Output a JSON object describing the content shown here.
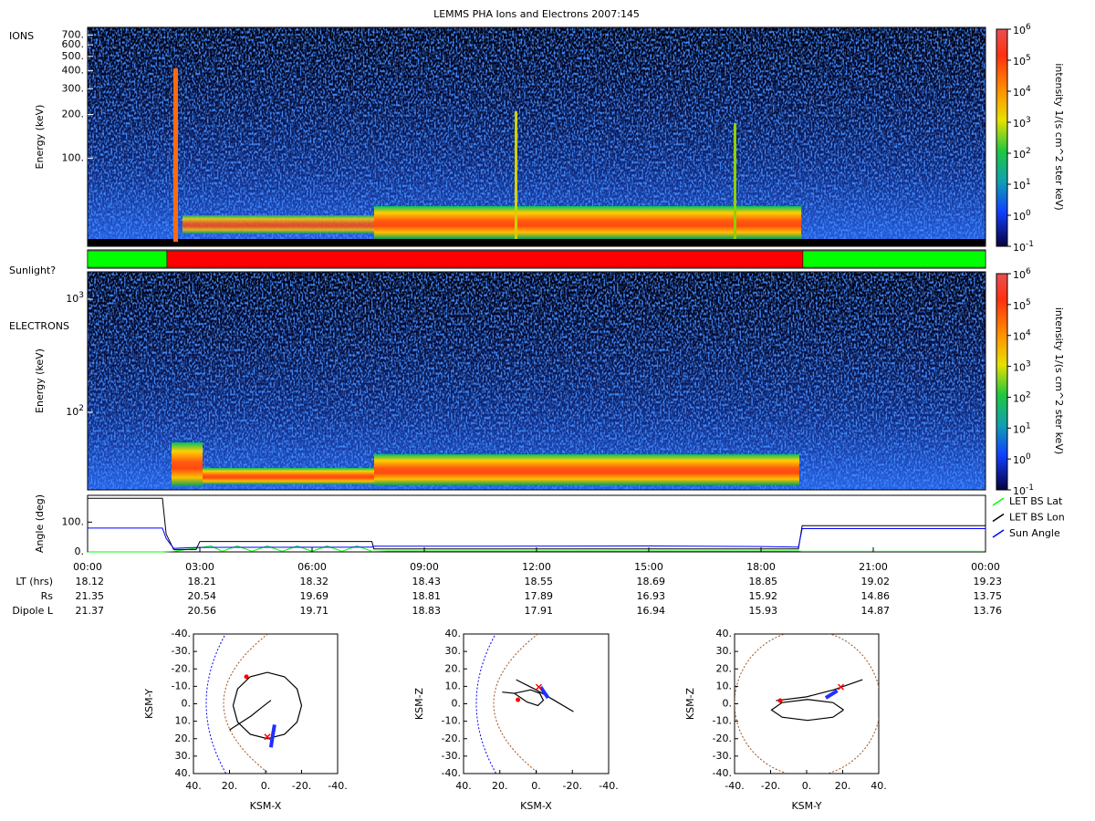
{
  "title": "LEMMS PHA Ions and Electrons  2007:145",
  "time_axis": {
    "xlim": [
      0,
      24
    ],
    "xticks": [
      {
        "value": 0,
        "label": "00:00"
      },
      {
        "value": 3,
        "label": "03:00"
      },
      {
        "value": 6,
        "label": "06:00"
      },
      {
        "value": 9,
        "label": "09:00"
      },
      {
        "value": 12,
        "label": "12:00"
      },
      {
        "value": 15,
        "label": "15:00"
      },
      {
        "value": 18,
        "label": "18:00"
      },
      {
        "value": 21,
        "label": "21:00"
      },
      {
        "value": 24,
        "label": "00:00"
      }
    ]
  },
  "ions": {
    "label": "IONS",
    "ylabel": "Energy (keV)",
    "log": true,
    "ylim": [
      25,
      790
    ],
    "yticks": [
      {
        "value": 100,
        "label": "100."
      },
      {
        "value": 200,
        "label": "200."
      },
      {
        "value": 300,
        "label": "300."
      },
      {
        "value": 400,
        "label": "400."
      },
      {
        "value": 500,
        "label": "500."
      },
      {
        "value": 600,
        "label": "600."
      },
      {
        "value": 700,
        "label": "700."
      }
    ]
  },
  "electrons": {
    "label": "ELECTRONS",
    "ylabel": "Energy (keV)",
    "log": true,
    "ylim": [
      20.6,
      1745
    ],
    "yticks": [
      {
        "value": 100,
        "label": "10",
        "exponent": "2"
      },
      {
        "value": 1000,
        "label": "10",
        "exponent": "3"
      }
    ]
  },
  "colorbar": {
    "label": "intensity 1/(s cm^2 ster keV)",
    "log": true,
    "lim": [
      0.1,
      1000000
    ],
    "ticks": [
      {
        "value": 0.1,
        "label": "10",
        "exponent": "-1"
      },
      {
        "value": 1,
        "label": "10",
        "exponent": "0"
      },
      {
        "value": 10,
        "label": "10",
        "exponent": "1"
      },
      {
        "value": 100,
        "label": "10",
        "exponent": "2"
      },
      {
        "value": 1000,
        "label": "10",
        "exponent": "3"
      },
      {
        "value": 10000,
        "label": "10",
        "exponent": "4"
      },
      {
        "value": 100000,
        "label": "10",
        "exponent": "5"
      },
      {
        "value": 1000000,
        "label": "10",
        "exponent": "6"
      }
    ]
  },
  "sunlight": {
    "label": "Sunlight?",
    "segments": [
      {
        "start": 0,
        "end": 2.12,
        "color": "#00ff00"
      },
      {
        "start": 2.12,
        "end": 19.12,
        "color": "#ff0000"
      },
      {
        "start": 19.12,
        "end": 24,
        "color": "#00ff00"
      }
    ]
  },
  "angle": {
    "ylabel": "Angle (deg)",
    "ylim": [
      0,
      190
    ],
    "yticks": [
      {
        "value": 0,
        "label": "0."
      },
      {
        "value": 100,
        "label": "100."
      }
    ],
    "series": [
      {
        "name": "LET BS Lat",
        "color": "#00ff00",
        "x": [
          0,
          2.0,
          2.3,
          3.3,
          3.6,
          4.0,
          4.4,
          4.8,
          5.2,
          5.6,
          6.0,
          6.4,
          6.8,
          7.2,
          7.6,
          8,
          19,
          19.1,
          24
        ],
        "values": [
          0,
          0,
          2,
          20,
          2,
          20,
          2,
          20,
          2,
          20,
          2,
          20,
          2,
          20,
          2,
          3,
          3,
          2,
          2
        ]
      },
      {
        "name": "LET BS Lon",
        "color": "#000000",
        "x": [
          0,
          2.0,
          2.1,
          2.3,
          2.9,
          3.0,
          7.6,
          7.65,
          19.0,
          19.1,
          24
        ],
        "values": [
          180,
          180,
          60,
          8,
          8,
          35,
          35,
          10,
          10,
          88,
          88
        ]
      },
      {
        "name": "Sun Angle",
        "color": "#0000ff",
        "x": [
          0,
          2.0,
          2.1,
          2.3,
          2.9,
          7.6,
          7.65,
          11,
          15,
          18,
          19.0,
          19.1,
          24
        ],
        "values": [
          80,
          80,
          45,
          12,
          15,
          16,
          19,
          19,
          20,
          18,
          16,
          78,
          78
        ]
      }
    ]
  },
  "ephemeris": {
    "rows": [
      {
        "label": "LT (hrs)",
        "values": [
          18.12,
          18.21,
          18.32,
          18.43,
          18.55,
          18.69,
          18.85,
          19.02,
          19.23
        ]
      },
      {
        "label": "Rs",
        "values": [
          21.35,
          20.54,
          19.69,
          18.81,
          17.89,
          16.93,
          15.92,
          14.86,
          13.75
        ]
      },
      {
        "label": "Dipole L",
        "values": [
          21.37,
          20.56,
          19.71,
          18.83,
          17.91,
          16.94,
          15.93,
          14.87,
          13.76
        ]
      }
    ]
  },
  "orbits": [
    {
      "xlabel": "KSM-X",
      "ylabel": "KSM-Y",
      "xlim": [
        40,
        -40
      ],
      "ylim": [
        40,
        -40
      ],
      "xticks": [
        {
          "value": 40,
          "label": "40."
        },
        {
          "value": 20,
          "label": "20."
        },
        {
          "value": 0,
          "label": "0."
        },
        {
          "value": -20,
          "label": "-20."
        },
        {
          "value": -40,
          "label": "-40."
        }
      ],
      "yticks": [
        {
          "value": -40,
          "label": "-40."
        },
        {
          "value": -30,
          "label": "-30."
        },
        {
          "value": -20,
          "label": "-20."
        },
        {
          "value": -10,
          "label": "-10."
        },
        {
          "value": 0,
          "label": "0."
        },
        {
          "value": 10,
          "label": "10."
        },
        {
          "value": 20,
          "label": "20."
        },
        {
          "value": 30,
          "label": "30."
        },
        {
          "value": 40,
          "label": "40."
        }
      ],
      "trajectory": {
        "x": [
          18,
          15.5,
          8.5,
          -1,
          -10.5,
          -17.5,
          -20,
          -17.5,
          -10.5,
          -1,
          8.5,
          15.5,
          18,
          null,
          -3,
          2,
          8,
          14,
          20
        ],
        "y": [
          1,
          10.5,
          17.5,
          20,
          17.5,
          10.5,
          1,
          -8.5,
          -15.5,
          -18,
          -15.5,
          -8.5,
          1,
          null,
          -2,
          2,
          7,
          11,
          15
        ]
      },
      "highlight": {
        "x": [
          -5,
          -4,
          -3
        ],
        "y": [
          12,
          18,
          25
        ]
      },
      "start": {
        "x": 10.6,
        "y": -15.5
      },
      "end": {
        "x": -1,
        "y": 19
      }
    },
    {
      "xlabel": "KSM-X",
      "ylabel": "KSM-Z",
      "xlim": [
        40,
        -40
      ],
      "ylim": [
        -40,
        40
      ],
      "xticks": [
        {
          "value": 40,
          "label": "40."
        },
        {
          "value": 20,
          "label": "20."
        },
        {
          "value": 0,
          "label": "0."
        },
        {
          "value": -20,
          "label": "-20."
        },
        {
          "value": -40,
          "label": "-40."
        }
      ],
      "yticks": [
        {
          "value": -40,
          "label": "-40."
        },
        {
          "value": -30,
          "label": "-30."
        },
        {
          "value": -20,
          "label": "-20."
        },
        {
          "value": -10,
          "label": "-10."
        },
        {
          "value": 0,
          "label": "0."
        },
        {
          "value": 10,
          "label": "10."
        },
        {
          "value": 20,
          "label": "20."
        },
        {
          "value": 30,
          "label": "30."
        },
        {
          "value": 40,
          "label": "40."
        }
      ],
      "trajectory": {
        "x": [
          11,
          0,
          -10,
          -20.6,
          null,
          18.7,
          12,
          5,
          -1,
          -4,
          -2,
          3,
          12
        ],
        "y": [
          13.8,
          8,
          2,
          -4.5,
          null,
          6.7,
          6,
          1,
          -1,
          2,
          6,
          8,
          6
        ]
      },
      "highlight": {
        "x": [
          -2.5,
          -4.5,
          -6.6
        ],
        "y": [
          9.6,
          6.5,
          3.4
        ]
      },
      "start": {
        "x": 10,
        "y": 2.3
      },
      "end": {
        "x": -1.5,
        "y": 9.6
      }
    },
    {
      "xlabel": "KSM-Y",
      "ylabel": "KSM-Z",
      "xlim": [
        -40,
        40
      ],
      "ylim": [
        -40,
        40
      ],
      "xticks": [
        {
          "value": -40,
          "label": "-40."
        },
        {
          "value": -20,
          "label": "-20."
        },
        {
          "value": 0,
          "label": "0."
        },
        {
          "value": 20,
          "label": "20."
        },
        {
          "value": 40,
          "label": "40."
        }
      ],
      "yticks": [
        {
          "value": -40,
          "label": "-40."
        },
        {
          "value": -30,
          "label": "-30."
        },
        {
          "value": -20,
          "label": "-20."
        },
        {
          "value": -10,
          "label": "-10."
        },
        {
          "value": 0,
          "label": "0."
        },
        {
          "value": 10,
          "label": "10."
        },
        {
          "value": 20,
          "label": "20."
        },
        {
          "value": 30,
          "label": "30."
        },
        {
          "value": 40,
          "label": "40."
        }
      ],
      "trajectory": {
        "x": [
          20.5,
          14.6,
          0.5,
          -13.6,
          -19.5,
          -13.6,
          0.5,
          14.6,
          20.5,
          null,
          -17,
          0,
          15,
          31
        ],
        "y": [
          -3.5,
          0.7,
          2.5,
          0.7,
          -3.5,
          -7.7,
          -9.5,
          -7.7,
          -3.5,
          null,
          1.8,
          4,
          8,
          13.8
        ]
      },
      "highlight": {
        "x": [
          10.6,
          14,
          17
        ],
        "y": [
          3.4,
          5.5,
          7.5
        ]
      },
      "start": {
        "x": -14.7,
        "y": 1.8
      },
      "end": {
        "x": 19,
        "y": 9.6
      }
    }
  ]
}
